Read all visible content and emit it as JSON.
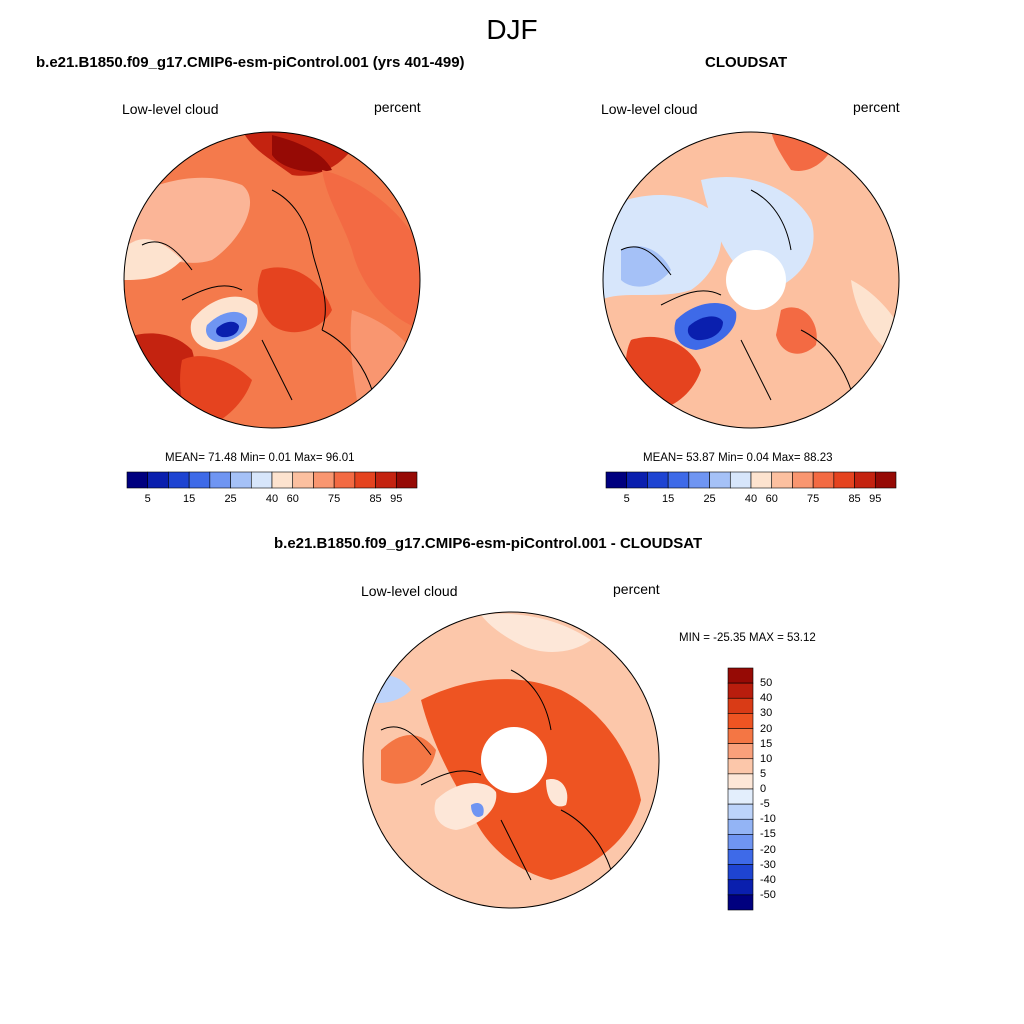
{
  "figure": {
    "season_title": "DJF"
  },
  "panels": {
    "model": {
      "title": "b.e21.B1850.f09_g17.CMIP6-esm-piControl.001 (yrs 401-499)",
      "variable": "Low-level cloud",
      "units": "percent",
      "stats": "MEAN=  71.48  Min=   0.01  Max=  96.01",
      "colorbar_ticks": [
        "5",
        "15",
        "25",
        "40",
        "60",
        "75",
        "85",
        "95"
      ]
    },
    "obs": {
      "title": "CLOUDSAT",
      "variable": "Low-level cloud",
      "units": "percent",
      "stats": "MEAN=  53.87  Min=   0.04  Max=  88.23",
      "colorbar_ticks": [
        "5",
        "15",
        "25",
        "40",
        "60",
        "75",
        "85",
        "95"
      ]
    },
    "diff": {
      "title": "b.e21.B1850.f09_g17.CMIP6-esm-piControl.001 - CLOUDSAT",
      "variable": "Low-level cloud",
      "units": "percent",
      "stats": "MIN = -25.35 MAX =  53.12",
      "colorbar_ticks": [
        "50",
        "40",
        "30",
        "20",
        "15",
        "10",
        "5",
        "0",
        "-5",
        "-10",
        "-15",
        "-20",
        "-30",
        "-40",
        "-50"
      ]
    }
  },
  "colors": {
    "abs_scale": [
      "#00007f",
      "#0a1fae",
      "#1e44d2",
      "#3e6ae8",
      "#6f95f2",
      "#a5c1f7",
      "#d7e6fb",
      "#fde3cf",
      "#fcc0a0",
      "#f99670",
      "#f36a43",
      "#e5431f",
      "#c42310",
      "#960a05"
    ],
    "diff_scale": [
      "#960a05",
      "#b81d0d",
      "#d93b16",
      "#ee5422",
      "#f47644",
      "#f9a07b",
      "#fcc7aa",
      "#fde7d8",
      "#e3eefc",
      "#bcd3fa",
      "#93b4f5",
      "#6f95f2",
      "#3e6ae8",
      "#1e44d2",
      "#0a1fae",
      "#00007f"
    ]
  }
}
